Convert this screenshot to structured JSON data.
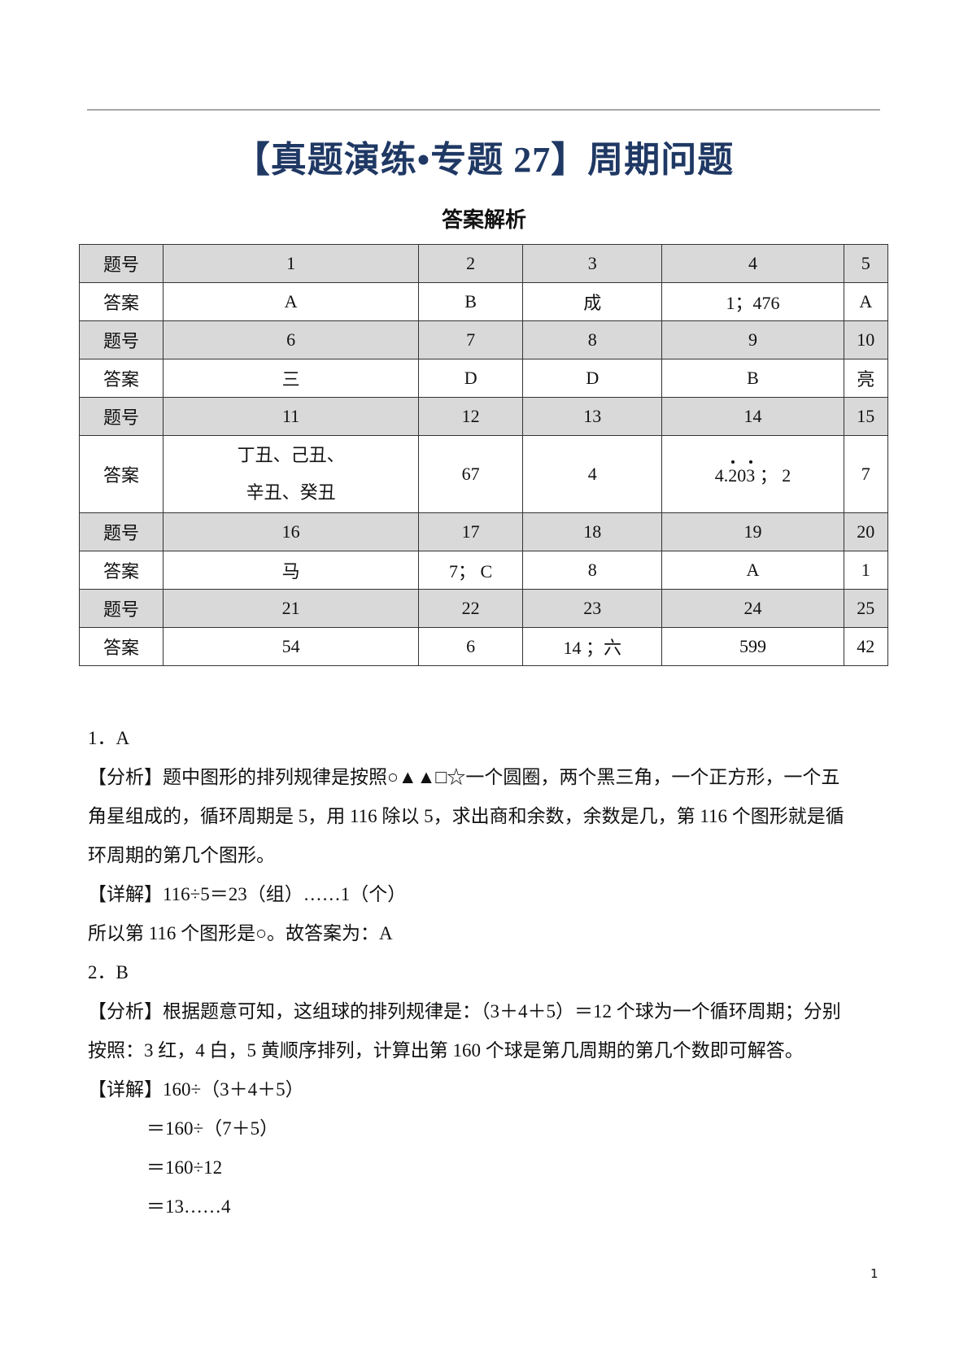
{
  "title": "【真题演练•专题 27】周期问题",
  "subtitle": "答案解析",
  "table": {
    "row_label_q": "题号",
    "row_label_a": "答案",
    "groups": [
      {
        "q": [
          "1",
          "2",
          "3",
          "4",
          "5"
        ],
        "a": [
          "A",
          "B",
          "成",
          "1；476",
          "A"
        ]
      },
      {
        "q": [
          "6",
          "7",
          "8",
          "9",
          "10"
        ],
        "a": [
          "三",
          "D",
          "D",
          "B",
          "亮"
        ]
      },
      {
        "q": [
          "11",
          "12",
          "13",
          "14",
          "15"
        ],
        "a": [
          "丁丑、己丑、辛丑、癸丑",
          "67",
          "4",
          "4.203 ； 2",
          "7"
        ]
      },
      {
        "q": [
          "16",
          "17",
          "18",
          "19",
          "20"
        ],
        "a": [
          "马",
          "7； C",
          "8",
          "A",
          "1"
        ]
      },
      {
        "q": [
          "21",
          "22",
          "23",
          "24",
          "25"
        ],
        "a": [
          "54",
          "6",
          "14 ；六",
          "599",
          "42"
        ]
      }
    ],
    "a11_line1": "丁丑、己丑、",
    "a11_line2": "辛丑、癸丑",
    "a14_int": "4.",
    "a14_d1": "2",
    "a14_d2": "0",
    "a14_d3": "3",
    "a14_rest": " ；  2"
  },
  "body": [
    "1．A",
    "【分析】题中图形的排列规律是按照○▲▲□☆一个圆圈，两个黑三角，一个正方形，一个五",
    "角星组成的，循环周期是 5，用 116 除以 5，求出商和余数，余数是几，第 116 个图形就是循",
    "环周期的第几个图形。",
    "【详解】116÷5＝23（组）……1（个）",
    "所以第 116 个图形是○。故答案为：A",
    "2．B",
    "【分析】根据题意可知，这组球的排列规律是：（3＋4＋5）＝12 个球为一个循环周期；分别",
    "按照：3 红，4 白，5 黄顺序排列，计算出第 160 个球是第几周期的第几个数即可解答。",
    "【详解】160÷（3＋4＋5）",
    "＝160÷（7＋5）",
    "＝160÷12",
    "＝13……4"
  ],
  "page_number": "1",
  "colors": {
    "title": "#1f3864",
    "header_row": "#d9d9d9"
  }
}
